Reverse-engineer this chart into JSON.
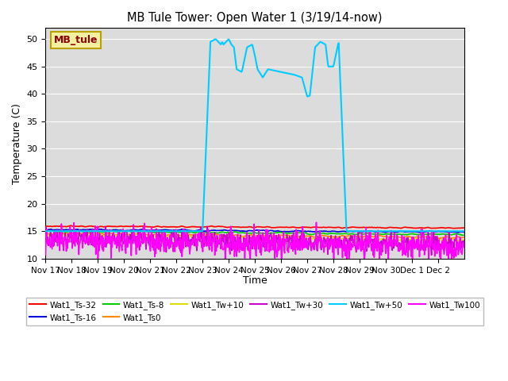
{
  "title": "MB Tule Tower: Open Water 1 (3/19/14-now)",
  "xlabel": "Time",
  "ylabel": "Temperature (C)",
  "ylim": [
    10,
    52
  ],
  "yticks": [
    10,
    15,
    20,
    25,
    30,
    35,
    40,
    45,
    50
  ],
  "background_color": "#dcdcdc",
  "legend_label": "MB_tule",
  "legend_box_facecolor": "#f5f0a0",
  "legend_box_edgecolor": "#b8a000",
  "series": [
    {
      "label": "Wat1_Ts-32",
      "color": "#ff0000",
      "lw": 1.2,
      "base": 15.9,
      "noise": 0.15,
      "trend": -0.02
    },
    {
      "label": "Wat1_Ts-16",
      "color": "#0000dd",
      "lw": 1.2,
      "base": 15.3,
      "noise": 0.15,
      "trend": -0.03
    },
    {
      "label": "Wat1_Ts-8",
      "color": "#00cc00",
      "lw": 1.2,
      "base": 15.0,
      "noise": 0.18,
      "trend": -0.04
    },
    {
      "label": "Wat1_Ts0",
      "color": "#ff8800",
      "lw": 1.2,
      "base": 14.6,
      "noise": 0.22,
      "trend": -0.05
    },
    {
      "label": "Wat1_Tw+10",
      "color": "#dddd00",
      "lw": 1.2,
      "base": 14.3,
      "noise": 0.25,
      "trend": -0.06
    },
    {
      "label": "Wat1_Tw+30",
      "color": "#cc00cc",
      "lw": 1.2,
      "base": 13.8,
      "noise": 0.8,
      "trend": -0.07
    },
    {
      "label": "Wat1_Tw+50",
      "color": "#00ccff",
      "lw": 1.5,
      "base": 15.0,
      "noise": 0.1,
      "trend": 0.0
    },
    {
      "label": "Wat1_Tw100",
      "color": "#ff00ff",
      "lw": 1.2,
      "base": 13.5,
      "noise": 1.2,
      "trend": -0.08
    }
  ],
  "xtick_labels": [
    "Nov 17",
    "Nov 18",
    "Nov 19",
    "Nov 20",
    "Nov 21",
    "Nov 22",
    "Nov 23",
    "Nov 24",
    "Nov 25",
    "Nov 26",
    "Nov 27",
    "Nov 28",
    "Nov 29",
    "Nov 30",
    "Dec 1",
    "Dec 2"
  ],
  "cyan_x": [
    0.0,
    6.0,
    6.3,
    6.5,
    6.6,
    6.7,
    6.75,
    6.8,
    6.9,
    7.0,
    7.1,
    7.2,
    7.3,
    7.5,
    7.7,
    7.9,
    8.0,
    8.1,
    8.3,
    8.5,
    9.0,
    9.5,
    9.8,
    10.0,
    10.1,
    10.3,
    10.5,
    10.7,
    10.8,
    11.0,
    11.2,
    11.5,
    16.0
  ],
  "cyan_y": [
    15.0,
    15.0,
    49.5,
    50.0,
    49.5,
    49.0,
    49.5,
    49.0,
    49.5,
    50.0,
    49.0,
    48.5,
    44.5,
    44.0,
    48.5,
    49.0,
    47.0,
    44.5,
    43.0,
    44.5,
    44.0,
    43.5,
    43.0,
    39.5,
    39.7,
    48.5,
    49.5,
    49.0,
    45.0,
    45.0,
    49.5,
    15.0,
    15.0
  ]
}
